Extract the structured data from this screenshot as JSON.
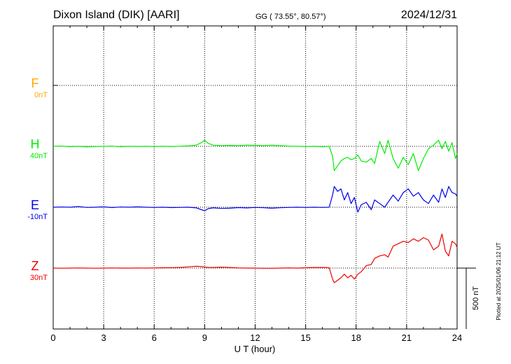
{
  "header": {
    "station": "Dixon Island (DIK)  [AARI]",
    "coords": "GG ( 73.55°,  80.57°)",
    "date": "2024/12/31"
  },
  "side_note": "Plotted at 2025/01/06 21:12 UT",
  "scale_label": "500 nT",
  "chart_data": {
    "type": "line",
    "xlabel": "U T (hour)",
    "xlim": [
      0,
      24
    ],
    "xticks": [
      0,
      3,
      6,
      9,
      12,
      15,
      18,
      21,
      24
    ],
    "xtick_labels": [
      "0",
      "3",
      "6",
      "9",
      "12",
      "15",
      "18",
      "21",
      "24"
    ],
    "scale_bar_nT": 500,
    "grid": true,
    "series": [
      {
        "name": "F",
        "offset_label": "0nT",
        "color": "#ffaa00",
        "x": [],
        "y": []
      },
      {
        "name": "H",
        "offset_label": "40nT",
        "color": "#00ee00",
        "x": [
          0,
          0.5,
          1,
          1.5,
          2,
          2.5,
          3,
          3.5,
          4,
          4.5,
          5,
          5.5,
          6,
          6.5,
          7,
          7.5,
          8,
          8.5,
          8.8,
          9.0,
          9.2,
          9.5,
          10,
          10.5,
          11,
          11.5,
          12,
          12.5,
          13,
          13.5,
          14,
          14.5,
          15,
          15.5,
          16,
          16.4,
          16.6,
          16.7,
          16.9,
          17.1,
          17.3,
          17.5,
          17.7,
          17.9,
          18.1,
          18.3,
          18.6,
          18.9,
          19.1,
          19.4,
          19.7,
          19.9,
          20.2,
          20.5,
          20.8,
          21.1,
          21.4,
          21.7,
          22.0,
          22.3,
          22.6,
          22.9,
          23.1,
          23.3,
          23.5,
          23.7,
          23.9,
          24
        ],
        "y": [
          0,
          2,
          -3,
          0,
          -5,
          -2,
          0,
          2,
          -4,
          0,
          -2,
          0,
          -2,
          0,
          -2,
          0,
          4,
          10,
          30,
          50,
          25,
          10,
          5,
          8,
          5,
          10,
          8,
          5,
          10,
          5,
          2,
          0,
          -2,
          0,
          -4,
          0,
          -80,
          -200,
          -160,
          -120,
          -100,
          -90,
          -110,
          -100,
          -70,
          -120,
          -130,
          -100,
          -140,
          40,
          -60,
          50,
          -100,
          -180,
          -90,
          -150,
          -60,
          -200,
          -100,
          -20,
          10,
          50,
          -20,
          40,
          -40,
          30,
          -100,
          -60
        ]
      },
      {
        "name": "E",
        "offset_label": "-10nT",
        "color": "#0000ee",
        "x": [
          0,
          0.5,
          1,
          1.5,
          2,
          2.5,
          3,
          3.5,
          4,
          4.5,
          5,
          5.5,
          6,
          6.5,
          7,
          7.5,
          8,
          8.5,
          8.8,
          9.0,
          9.2,
          9.5,
          10,
          10.5,
          11,
          11.5,
          12,
          12.5,
          13,
          13.5,
          14,
          14.5,
          15,
          15.5,
          16,
          16.4,
          16.6,
          16.7,
          16.9,
          17.1,
          17.3,
          17.5,
          17.7,
          17.9,
          18.1,
          18.3,
          18.6,
          18.9,
          19.1,
          19.4,
          19.7,
          19.9,
          20.2,
          20.5,
          20.8,
          21.1,
          21.4,
          21.7,
          22.0,
          22.3,
          22.6,
          22.9,
          23.1,
          23.3,
          23.5,
          23.7,
          23.9,
          24
        ],
        "y": [
          0,
          2,
          0,
          5,
          -2,
          0,
          3,
          -3,
          2,
          0,
          3,
          0,
          -2,
          0,
          -3,
          -2,
          0,
          -5,
          -20,
          -30,
          -12,
          -5,
          -10,
          -8,
          -3,
          -6,
          -2,
          -4,
          -8,
          -4,
          -2,
          0,
          -2,
          0,
          -2,
          0,
          100,
          170,
          130,
          150,
          60,
          120,
          30,
          80,
          -40,
          20,
          40,
          -20,
          60,
          30,
          0,
          40,
          100,
          50,
          120,
          150,
          90,
          120,
          60,
          30,
          100,
          40,
          150,
          80,
          170,
          120,
          110,
          90
        ]
      },
      {
        "name": "Z",
        "offset_label": "30nT",
        "color": "#ee0000",
        "x": [
          0,
          0.5,
          1,
          1.5,
          2,
          2.5,
          3,
          3.5,
          4,
          4.5,
          5,
          5.5,
          6,
          6.5,
          7,
          7.5,
          8,
          8.5,
          8.8,
          9.0,
          9.2,
          9.5,
          10,
          10.5,
          11,
          11.5,
          12,
          12.5,
          13,
          13.5,
          14,
          14.5,
          15,
          15.5,
          16,
          16.4,
          16.6,
          16.7,
          16.9,
          17.1,
          17.3,
          17.5,
          17.7,
          17.9,
          18.1,
          18.3,
          18.6,
          18.9,
          19.1,
          19.4,
          19.7,
          19.9,
          20.2,
          20.5,
          20.8,
          21.1,
          21.4,
          21.7,
          22.0,
          22.3,
          22.6,
          22.9,
          23.1,
          23.3,
          23.5,
          23.7,
          23.9,
          24
        ],
        "y": [
          0,
          -1,
          0,
          1,
          0,
          -1,
          0,
          1,
          0,
          0,
          1,
          0,
          2,
          3,
          4,
          5,
          10,
          15,
          12,
          8,
          6,
          5,
          8,
          5,
          2,
          0,
          0,
          -2,
          -2,
          0,
          2,
          0,
          3,
          5,
          5,
          3,
          -90,
          -120,
          -100,
          -80,
          -50,
          -80,
          -60,
          -90,
          -50,
          -30,
          20,
          30,
          80,
          100,
          110,
          90,
          180,
          200,
          220,
          210,
          240,
          220,
          250,
          230,
          150,
          180,
          280,
          140,
          100,
          220,
          200,
          170
        ]
      }
    ]
  }
}
